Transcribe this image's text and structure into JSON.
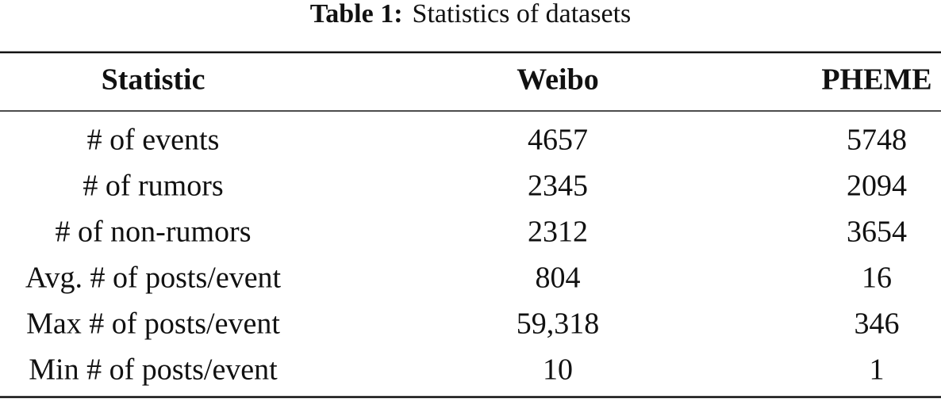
{
  "caption": {
    "label": "Table 1:",
    "text": "Statistics of datasets"
  },
  "table": {
    "header": [
      "Statistic",
      "Weibo",
      "PHEME"
    ],
    "rows": [
      [
        "# of events",
        "4657",
        "5748"
      ],
      [
        "# of rumors",
        "2345",
        "2094"
      ],
      [
        "# of non-rumors",
        "2312",
        "3654"
      ],
      [
        "Avg. # of posts/event",
        "804",
        "16"
      ],
      [
        "Max # of posts/event",
        "59,318",
        "346"
      ],
      [
        "Min # of posts/event",
        "10",
        "1"
      ]
    ]
  }
}
